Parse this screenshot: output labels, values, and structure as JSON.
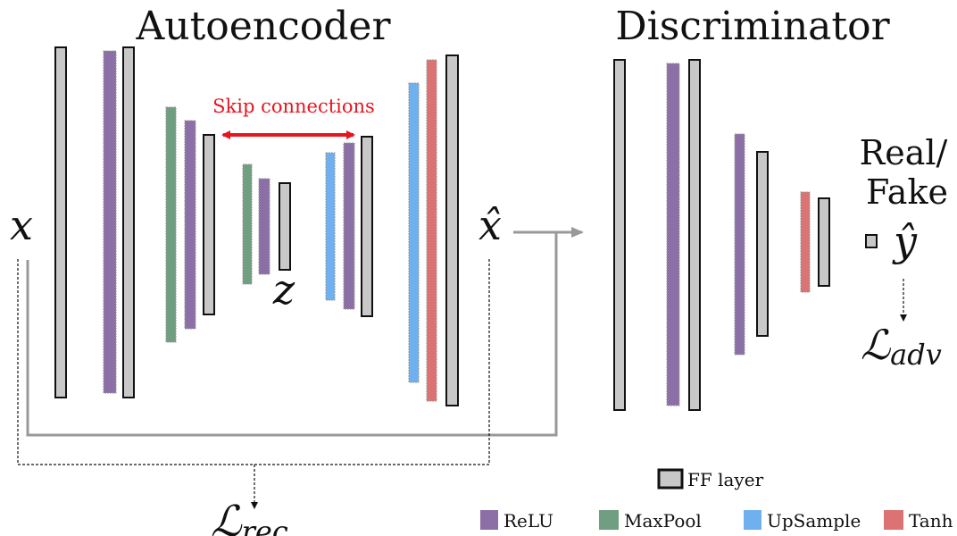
{
  "titles": {
    "autoencoder": "Autoencoder",
    "discriminator": "Discriminator"
  },
  "labels": {
    "skip_connections": "Skip connections",
    "x": "x",
    "x_hat": "x̂",
    "z": "z",
    "real": "Real/",
    "fake": "Fake",
    "y_hat": "ŷ",
    "loss_adv_main": "ℒ",
    "loss_adv_sub": "adv",
    "loss_rec_main": "ℒ",
    "loss_rec_sub": "rec"
  },
  "legend": {
    "ff_layer": "FF layer",
    "relu": "ReLU",
    "maxpool": "MaxPool",
    "upsample": "UpSample",
    "tanh": "Tanh"
  },
  "colors": {
    "ff": "#c8c8c8",
    "relu": "#8c6fa6",
    "maxpool": "#6f9e80",
    "upsample": "#6fb0ef",
    "tanh": "#dc7373",
    "skip_arrow": "#e8141e",
    "connector": "#999999"
  }
}
